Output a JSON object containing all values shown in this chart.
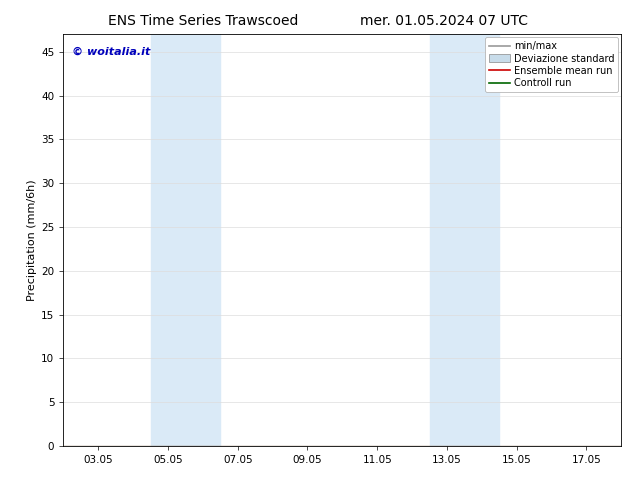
{
  "title_left": "ENS Time Series Trawscoed",
  "title_right": "mer. 01.05.2024 07 UTC",
  "ylabel": "Precipitation (mm/6h)",
  "watermark": "© woitalia.it",
  "watermark_color": "#0000bb",
  "xticklabels": [
    "03.05",
    "05.05",
    "07.05",
    "09.05",
    "11.05",
    "13.05",
    "15.05",
    "17.05"
  ],
  "xtick_positions": [
    1,
    3,
    5,
    7,
    9,
    11,
    13,
    15
  ],
  "ylim": [
    0,
    47
  ],
  "yticks": [
    0,
    5,
    10,
    15,
    20,
    25,
    30,
    35,
    40,
    45
  ],
  "xlim": [
    0,
    16
  ],
  "background_color": "#ffffff",
  "plot_bg_color": "#ffffff",
  "shaded_regions": [
    {
      "xmin": 2.5,
      "xmax": 4.5,
      "color": "#daeaf7"
    },
    {
      "xmin": 10.5,
      "xmax": 12.5,
      "color": "#daeaf7"
    }
  ],
  "legend_items": [
    {
      "label": "min/max",
      "color": "#999999",
      "type": "line"
    },
    {
      "label": "Deviazione standard",
      "color": "#c8dcea",
      "type": "patch"
    },
    {
      "label": "Ensemble mean run",
      "color": "#cc0000",
      "type": "line"
    },
    {
      "label": "Controll run",
      "color": "#006600",
      "type": "line"
    }
  ],
  "title_fontsize": 10,
  "tick_fontsize": 7.5,
  "ylabel_fontsize": 8,
  "legend_fontsize": 7,
  "watermark_fontsize": 8
}
